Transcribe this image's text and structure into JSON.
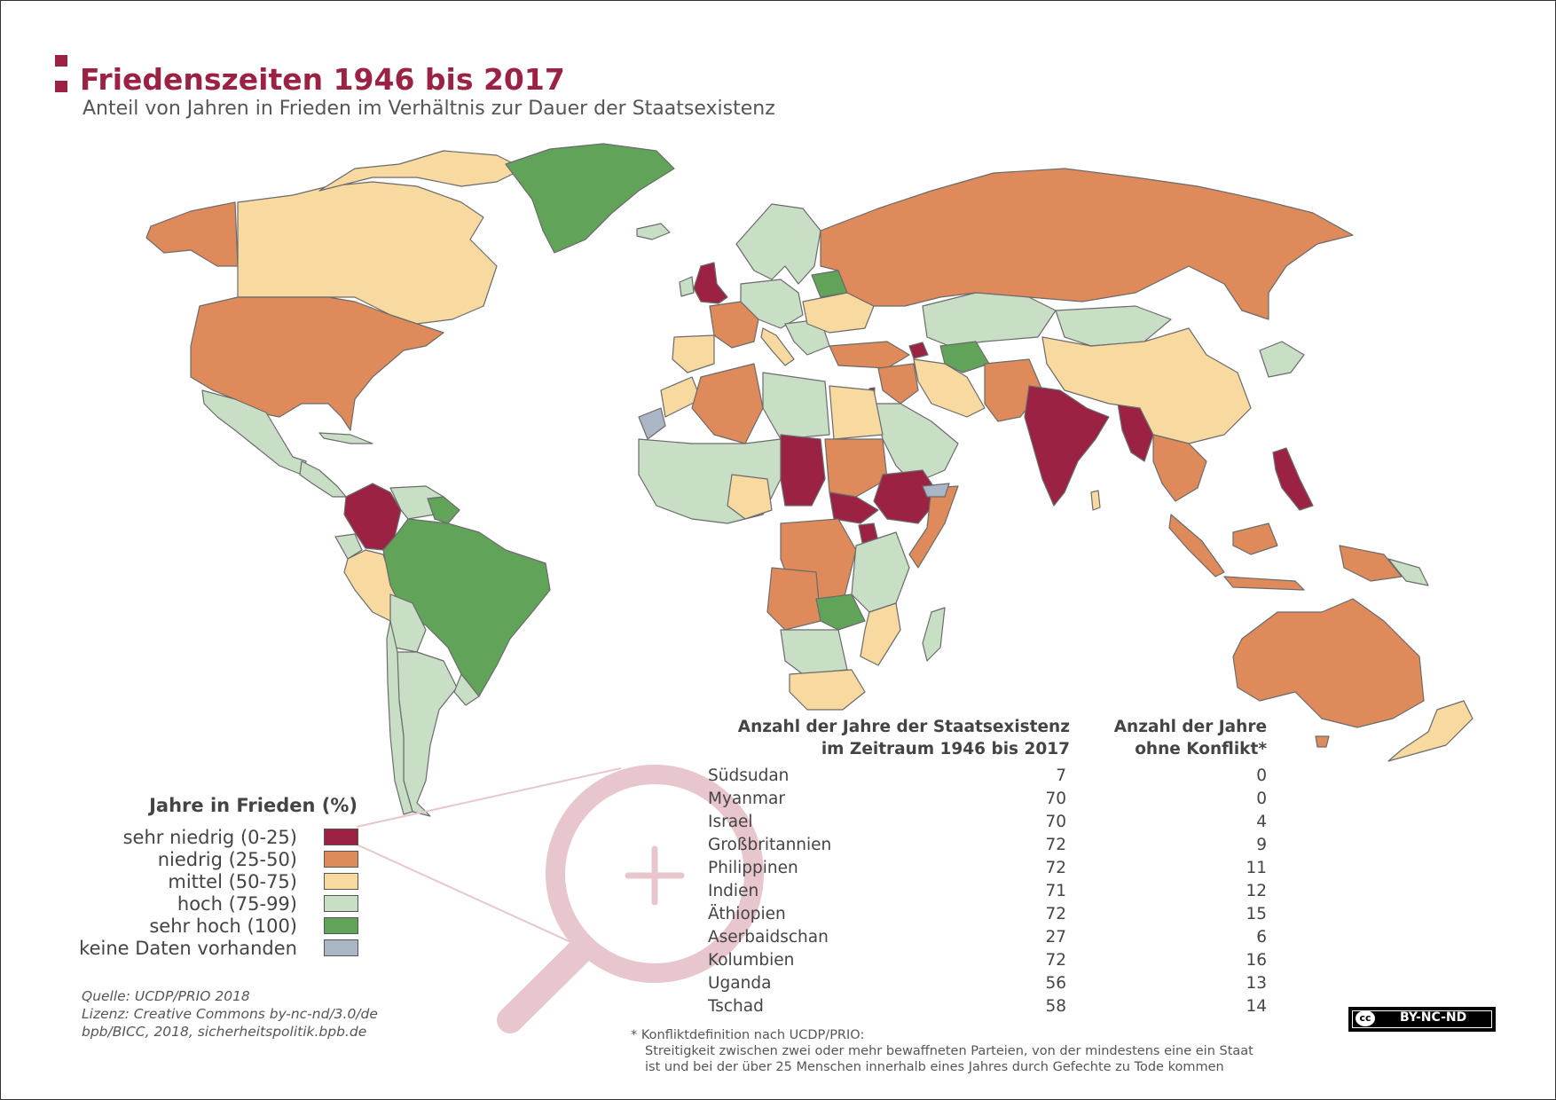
{
  "title": "Friedenszeiten 1946 bis 2017",
  "subtitle": "Anteil von Jahren in Frieden im Verhältnis zur Dauer der Staatsexistenz",
  "legend": {
    "title": "Jahre in Frieden (%)",
    "items": [
      {
        "label": "sehr niedrig (0-25)",
        "color": "#9b2243"
      },
      {
        "label": "niedrig (25-50)",
        "color": "#de8a5a"
      },
      {
        "label": "mittel (50-75)",
        "color": "#f8d9a0"
      },
      {
        "label": "hoch (75-99)",
        "color": "#c8dfc6"
      },
      {
        "label": "sehr hoch (100)",
        "color": "#62a35a"
      },
      {
        "label": "keine Daten vorhanden",
        "color": "#aab5c6"
      }
    ]
  },
  "table": {
    "header_col1_line1": "Anzahl der Jahre der Staatsexistenz",
    "header_col1_line2": "im Zeitraum 1946 bis 2017",
    "header_col2_line1": "Anzahl der Jahre",
    "header_col2_line2": "ohne Konflikt*",
    "rows": [
      {
        "country": "Südsudan",
        "years": "7",
        "peace": "0"
      },
      {
        "country": "Myanmar",
        "years": "70",
        "peace": "0"
      },
      {
        "country": "Israel",
        "years": "70",
        "peace": "4"
      },
      {
        "country": "Großbritannien",
        "years": "72",
        "peace": "9"
      },
      {
        "country": "Philippinen",
        "years": "72",
        "peace": "11"
      },
      {
        "country": "Indien",
        "years": "71",
        "peace": "12"
      },
      {
        "country": "Äthiopien",
        "years": "72",
        "peace": "15"
      },
      {
        "country": "Aserbaidschan",
        "years": "27",
        "peace": "6"
      },
      {
        "country": "Kolumbien",
        "years": "72",
        "peace": "16"
      },
      {
        "country": "Uganda",
        "years": "56",
        "peace": "13"
      },
      {
        "country": "Tschad",
        "years": "58",
        "peace": "14"
      }
    ]
  },
  "footnote": {
    "line1": "* Konfliktdefinition nach UCDP/PRIO:",
    "line2": "Streitigkeit zwischen zwei oder mehr bewaffneten Parteien, von der mindestens eine ein Staat",
    "line3": "ist und bei der über 25 Menschen innerhalb eines Jahres durch Gefechte zu Tode kommen"
  },
  "source": {
    "line1": "Quelle: UCDP/PRIO 2018",
    "line2": "Lizenz: Creative Commons by-nc-nd/3.0/de",
    "line3": "bpb/BICC, 2018, sicherheitspolitik.bpb.de"
  },
  "license_badge": "BY-NC-ND",
  "license_cc": "cc",
  "colors": {
    "very_low": "#9b2243",
    "low": "#de8a5a",
    "medium": "#f8d9a0",
    "high": "#c8dfc6",
    "very_high": "#62a35a",
    "no_data": "#aab5c6",
    "magnifier": "#e8c6cd"
  }
}
